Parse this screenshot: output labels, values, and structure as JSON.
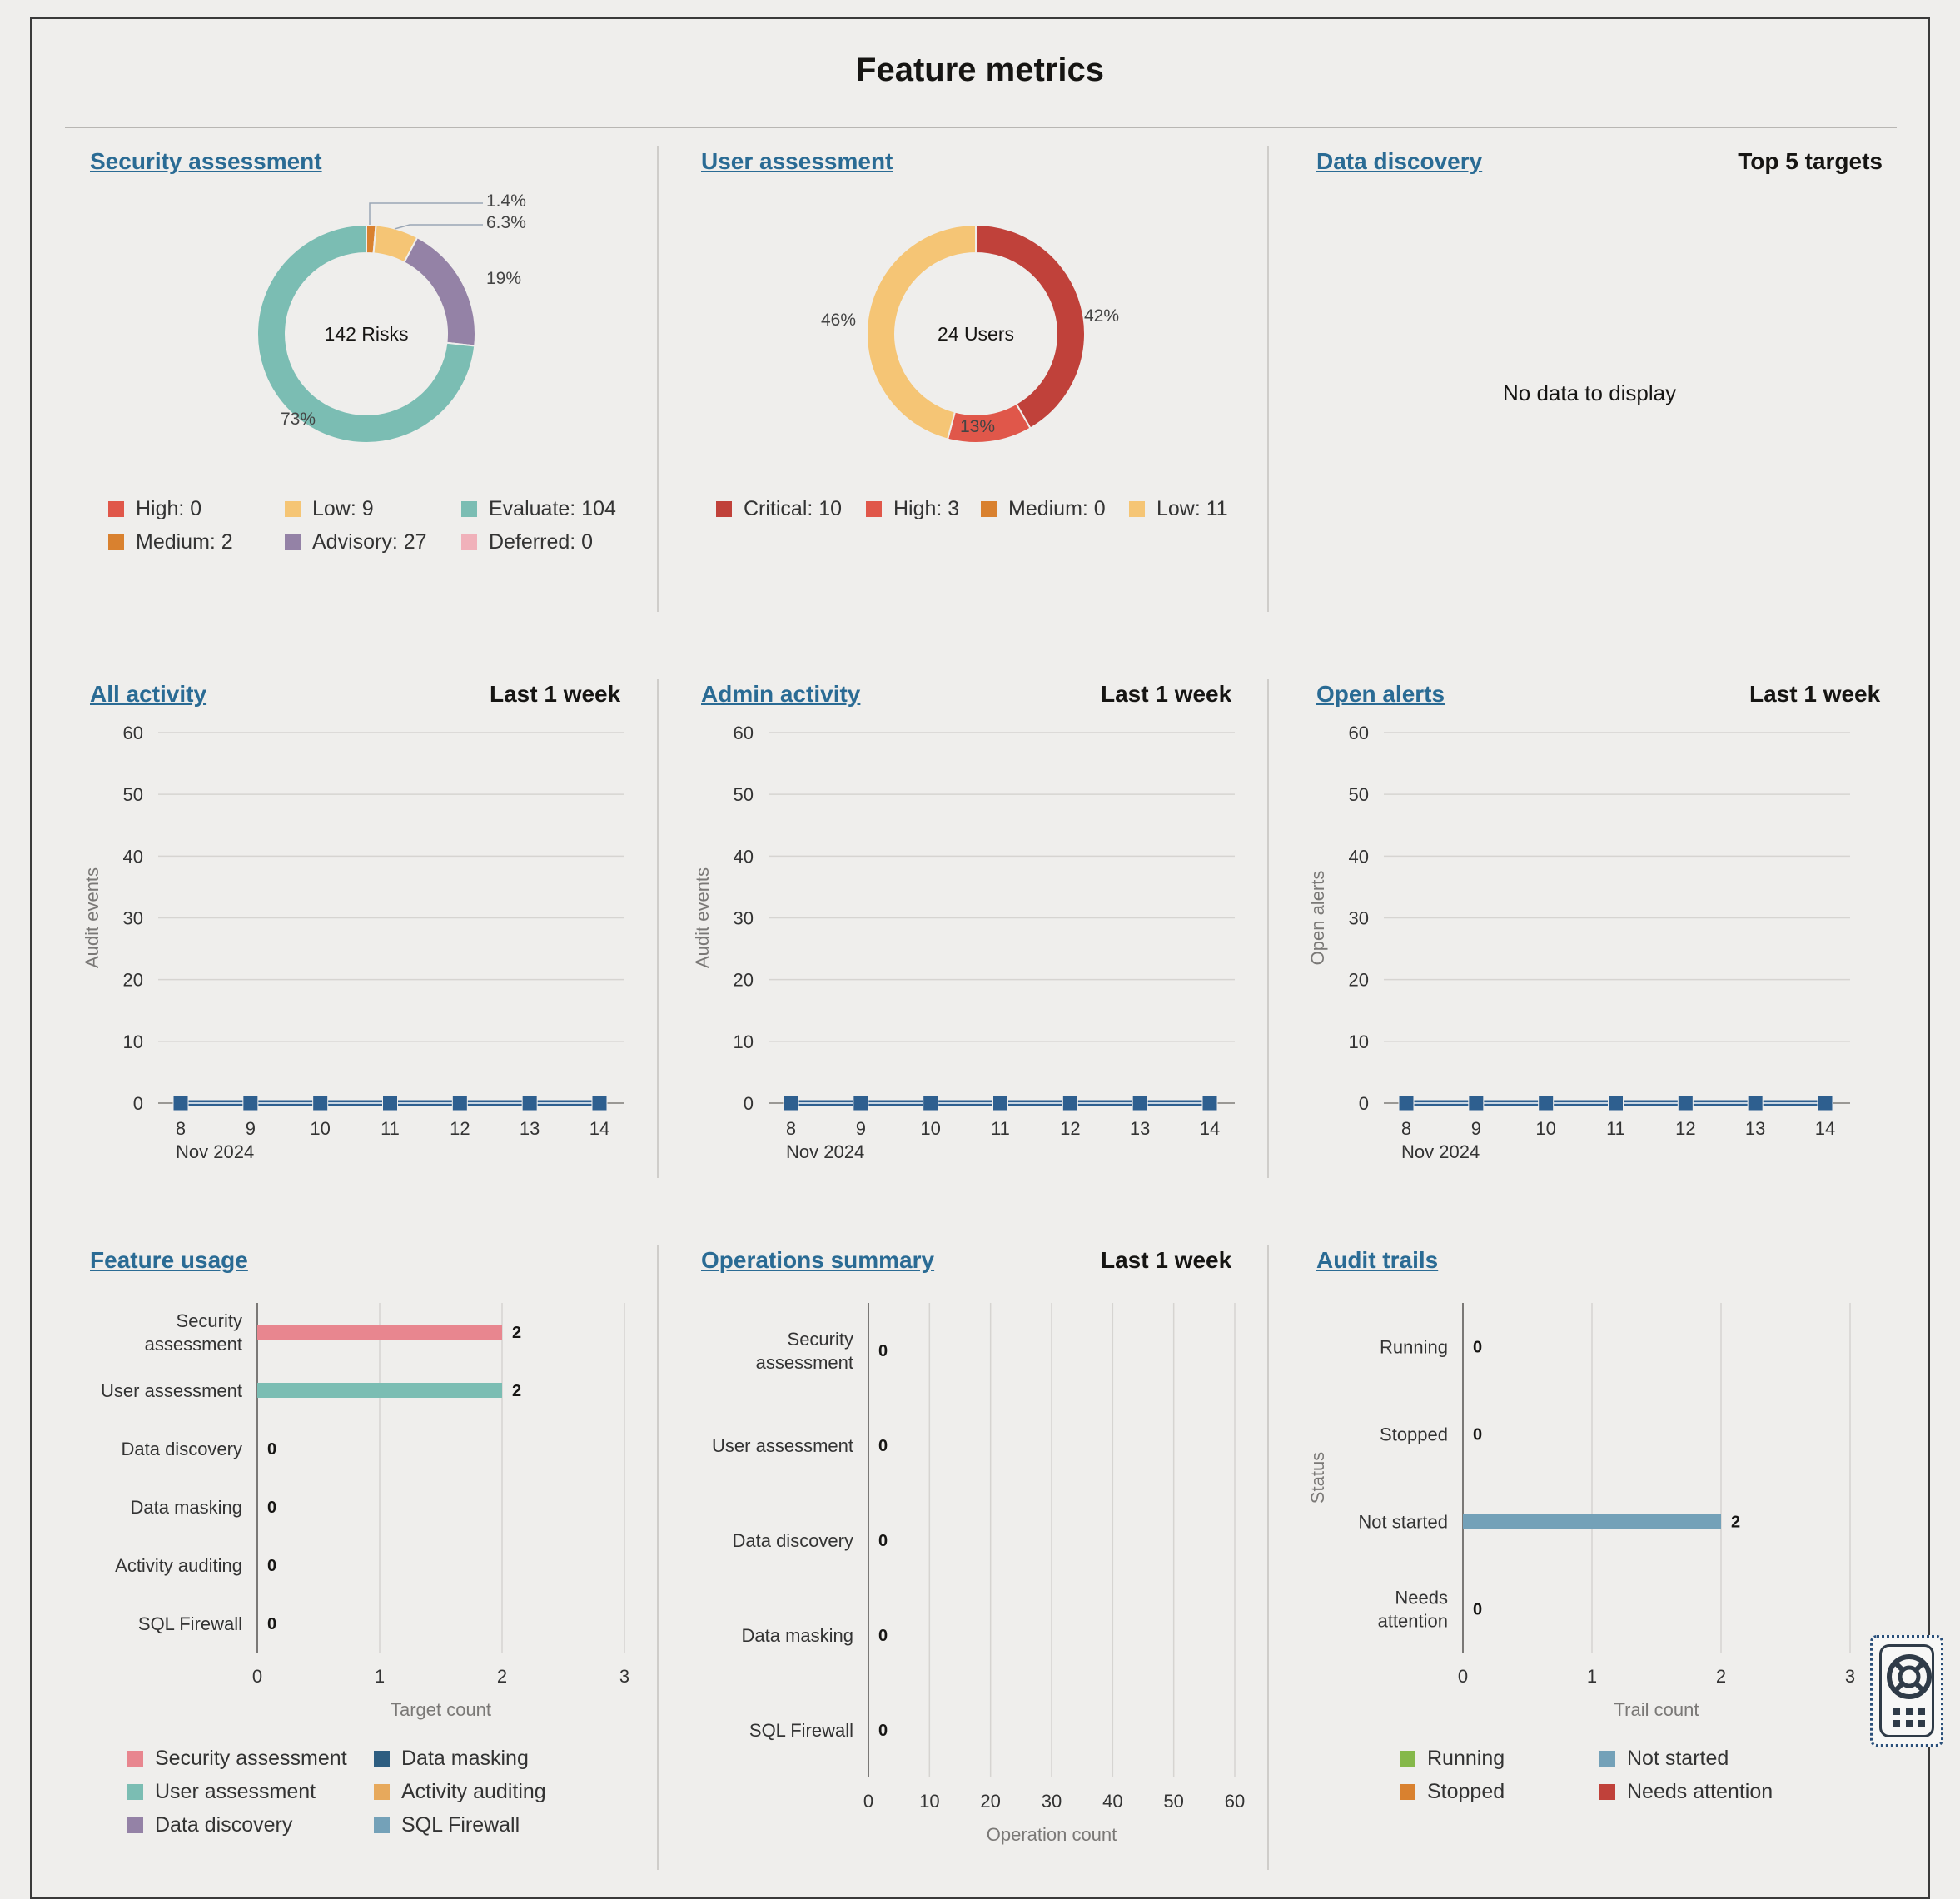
{
  "page": {
    "title": "Feature metrics"
  },
  "panels": {
    "security_assessment": {
      "title": "Security assessment",
      "center_label": "142 Risks",
      "slices": [
        {
          "name": "High",
          "value": 0,
          "color": "#e0574a"
        },
        {
          "name": "Medium",
          "value": 2,
          "color": "#d9812f",
          "pct": "1.4%"
        },
        {
          "name": "Low",
          "value": 9,
          "color": "#f5c575",
          "pct": "6.3%"
        },
        {
          "name": "Advisory",
          "value": 27,
          "color": "#9482a6",
          "pct": "19%"
        },
        {
          "name": "Evaluate",
          "value": 104,
          "color": "#7bbdb3",
          "pct": "73%"
        },
        {
          "name": "Deferred",
          "value": 0,
          "color": "#f0b1ba"
        }
      ],
      "legend": [
        {
          "label": "High: 0",
          "color": "#e0574a"
        },
        {
          "label": "Low: 9",
          "color": "#f5c575"
        },
        {
          "label": "Evaluate: 104",
          "color": "#7bbdb3"
        },
        {
          "label": "Medium: 2",
          "color": "#d9812f"
        },
        {
          "label": "Advisory: 27",
          "color": "#9482a6"
        },
        {
          "label": "Deferred: 0",
          "color": "#f0b1ba"
        }
      ]
    },
    "user_assessment": {
      "title": "User assessment",
      "center_label": "24 Users",
      "slices": [
        {
          "name": "Critical",
          "value": 10,
          "color": "#c0413a",
          "pct": "42%"
        },
        {
          "name": "High",
          "value": 3,
          "color": "#e0574a",
          "pct": "13%"
        },
        {
          "name": "Medium",
          "value": 0,
          "color": "#d9812f"
        },
        {
          "name": "Low",
          "value": 11,
          "color": "#f5c575",
          "pct": "46%"
        }
      ],
      "legend": [
        {
          "label": "Critical: 10",
          "color": "#c0413a"
        },
        {
          "label": "High: 3",
          "color": "#e0574a"
        },
        {
          "label": "Medium: 0",
          "color": "#d9812f"
        },
        {
          "label": "Low: 11",
          "color": "#f5c575"
        }
      ]
    },
    "data_discovery": {
      "title": "Data discovery",
      "right_label": "Top 5 targets",
      "empty_text": "No data to display"
    },
    "all_activity": {
      "title": "All activity",
      "right_label": "Last 1 week",
      "ylabel": "Audit events"
    },
    "admin_activity": {
      "title": "Admin activity",
      "right_label": "Last 1 week",
      "ylabel": "Audit events"
    },
    "open_alerts": {
      "title": "Open alerts",
      "right_label": "Last 1 week",
      "ylabel": "Open alerts"
    },
    "feature_usage": {
      "title": "Feature usage",
      "legend": [
        {
          "label": "Security assessment",
          "color": "#e8868f"
        },
        {
          "label": "Data masking",
          "color": "#2d5d80"
        },
        {
          "label": "User assessment",
          "color": "#7bbdb3"
        },
        {
          "label": "Activity auditing",
          "color": "#e7a95c"
        },
        {
          "label": "Data discovery",
          "color": "#9482a6"
        },
        {
          "label": "SQL Firewall",
          "color": "#74a1b8"
        }
      ]
    },
    "operations_summary": {
      "title": "Operations summary",
      "right_label": "Last 1 week"
    },
    "audit_trails": {
      "title": "Audit trails",
      "legend": [
        {
          "label": "Running",
          "color": "#85b84a"
        },
        {
          "label": "Not started",
          "color": "#74a1b8"
        },
        {
          "label": "Stopped",
          "color": "#d9812f"
        },
        {
          "label": "Needs attention",
          "color": "#c0413a"
        }
      ]
    }
  },
  "chart_data": [
    {
      "type": "pie",
      "title": "Security assessment",
      "categories": [
        "High",
        "Medium",
        "Low",
        "Advisory",
        "Evaluate",
        "Deferred"
      ],
      "values": [
        0,
        2,
        9,
        27,
        104,
        0
      ]
    },
    {
      "type": "pie",
      "title": "User assessment",
      "categories": [
        "Critical",
        "High",
        "Medium",
        "Low"
      ],
      "values": [
        10,
        3,
        0,
        11
      ]
    },
    {
      "type": "line",
      "title": "All activity",
      "ylabel": "Audit events",
      "xlabel": "Nov 2024",
      "x": [
        "8",
        "9",
        "10",
        "11",
        "12",
        "13",
        "14"
      ],
      "values": [
        0,
        0,
        0,
        0,
        0,
        0,
        0
      ],
      "ylim": [
        0,
        60
      ],
      "yticks": [
        "0",
        "10",
        "20",
        "30",
        "40",
        "50",
        "60"
      ]
    },
    {
      "type": "line",
      "title": "Admin activity",
      "ylabel": "Audit events",
      "xlabel": "Nov 2024",
      "x": [
        "8",
        "9",
        "10",
        "11",
        "12",
        "13",
        "14"
      ],
      "values": [
        0,
        0,
        0,
        0,
        0,
        0,
        0
      ],
      "ylim": [
        0,
        60
      ],
      "yticks": [
        "0",
        "10",
        "20",
        "30",
        "40",
        "50",
        "60"
      ]
    },
    {
      "type": "line",
      "title": "Open alerts",
      "ylabel": "Open alerts",
      "xlabel": "Nov 2024",
      "x": [
        "8",
        "9",
        "10",
        "11",
        "12",
        "13",
        "14"
      ],
      "values": [
        0,
        0,
        0,
        0,
        0,
        0,
        0
      ],
      "ylim": [
        0,
        60
      ],
      "yticks": [
        "0",
        "10",
        "20",
        "30",
        "40",
        "50",
        "60"
      ]
    },
    {
      "type": "bar",
      "title": "Feature usage",
      "xlabel": "Target count",
      "categories": [
        "Security assessment",
        "User assessment",
        "Data discovery",
        "Data masking",
        "Activity auditing",
        "SQL Firewall"
      ],
      "values": [
        2,
        2,
        0,
        0,
        0,
        0
      ],
      "colors": [
        "#e8868f",
        "#7bbdb3",
        "#9482a6",
        "#2d5d80",
        "#e7a95c",
        "#74a1b8"
      ],
      "xlim": [
        0,
        3
      ],
      "xticks": [
        "0",
        "1",
        "2",
        "3"
      ]
    },
    {
      "type": "bar",
      "title": "Operations summary",
      "xlabel": "Operation count",
      "categories": [
        "Security assessment",
        "User assessment",
        "Data discovery",
        "Data masking",
        "SQL Firewall"
      ],
      "values": [
        0,
        0,
        0,
        0,
        0
      ],
      "xlim": [
        0,
        60
      ],
      "xticks": [
        "0",
        "10",
        "20",
        "30",
        "40",
        "50",
        "60"
      ]
    },
    {
      "type": "bar",
      "title": "Audit trails",
      "xlabel": "Trail count",
      "ylabel": "Status",
      "categories": [
        "Running",
        "Stopped",
        "Not started",
        "Needs attention"
      ],
      "values": [
        0,
        0,
        2,
        0
      ],
      "colors": [
        "#85b84a",
        "#d9812f",
        "#74a1b8",
        "#c0413a"
      ],
      "xlim": [
        0,
        3
      ],
      "xticks": [
        "0",
        "1",
        "2",
        "3"
      ]
    }
  ]
}
